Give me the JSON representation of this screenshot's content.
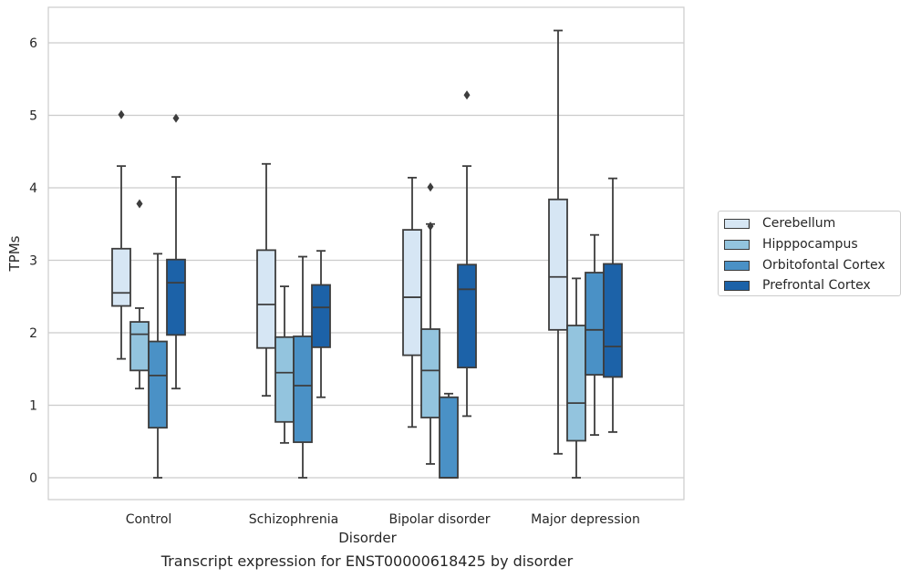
{
  "chart_data": {
    "type": "box",
    "title": "Transcript expression for ENST00000618425 by disorder",
    "xlabel": "Disorder",
    "ylabel": "TPMs",
    "ylim": [
      -0.3,
      6.5
    ],
    "yticks": [
      0,
      1,
      2,
      3,
      4,
      5,
      6
    ],
    "grid": "horizontal",
    "legend_position": "right",
    "categories": [
      "Control",
      "Schizophrenia",
      "Bipolar disorder",
      "Major depression"
    ],
    "series": [
      {
        "name": "Cerebellum",
        "color": "#d6e6f4",
        "boxes": [
          {
            "whislo": 1.64,
            "q1": 2.37,
            "med": 2.55,
            "q3": 3.16,
            "whishi": 4.3,
            "fliers": [
              5.01
            ]
          },
          {
            "whislo": 1.13,
            "q1": 1.79,
            "med": 2.39,
            "q3": 3.14,
            "whishi": 4.33,
            "fliers": []
          },
          {
            "whislo": 0.7,
            "q1": 1.69,
            "med": 2.49,
            "q3": 3.42,
            "whishi": 4.14,
            "fliers": []
          },
          {
            "whislo": 0.33,
            "q1": 2.04,
            "med": 2.77,
            "q3": 3.84,
            "whishi": 6.17,
            "fliers": []
          }
        ]
      },
      {
        "name": "Hipppocampus",
        "color": "#93c4de",
        "boxes": [
          {
            "whislo": 1.23,
            "q1": 1.48,
            "med": 1.98,
            "q3": 2.15,
            "whishi": 2.34,
            "fliers": [
              3.78
            ]
          },
          {
            "whislo": 0.48,
            "q1": 0.77,
            "med": 1.45,
            "q3": 1.94,
            "whishi": 2.64,
            "fliers": []
          },
          {
            "whislo": 0.19,
            "q1": 0.83,
            "med": 1.48,
            "q3": 2.05,
            "whishi": 3.5,
            "fliers": [
              4.01,
              3.47
            ]
          },
          {
            "whislo": 0.0,
            "q1": 0.51,
            "med": 1.03,
            "q3": 2.1,
            "whishi": 2.75,
            "fliers": []
          }
        ]
      },
      {
        "name": "Orbitofontal Cortex",
        "color": "#4a91c6",
        "boxes": [
          {
            "whislo": 0.0,
            "q1": 0.69,
            "med": 1.41,
            "q3": 1.88,
            "whishi": 3.09,
            "fliers": []
          },
          {
            "whislo": 0.0,
            "q1": 0.49,
            "med": 1.27,
            "q3": 1.95,
            "whishi": 3.05,
            "fliers": []
          },
          {
            "whislo": 0.0,
            "q1": 0.0,
            "med": 0.0,
            "q3": 1.11,
            "whishi": 1.16,
            "fliers": []
          },
          {
            "whislo": 0.59,
            "q1": 1.42,
            "med": 2.04,
            "q3": 2.83,
            "whishi": 3.35,
            "fliers": []
          }
        ]
      },
      {
        "name": "Prefrontal Cortex",
        "color": "#1c62a8",
        "boxes": [
          {
            "whislo": 1.23,
            "q1": 1.97,
            "med": 2.69,
            "q3": 3.01,
            "whishi": 4.15,
            "fliers": [
              4.96
            ]
          },
          {
            "whislo": 1.11,
            "q1": 1.8,
            "med": 2.35,
            "q3": 2.66,
            "whishi": 3.13,
            "fliers": []
          },
          {
            "whislo": 0.85,
            "q1": 1.52,
            "med": 2.6,
            "q3": 2.94,
            "whishi": 4.3,
            "fliers": [
              5.28
            ]
          },
          {
            "whislo": 0.63,
            "q1": 1.39,
            "med": 1.81,
            "q3": 2.95,
            "whishi": 4.13,
            "fliers": []
          }
        ]
      }
    ]
  }
}
